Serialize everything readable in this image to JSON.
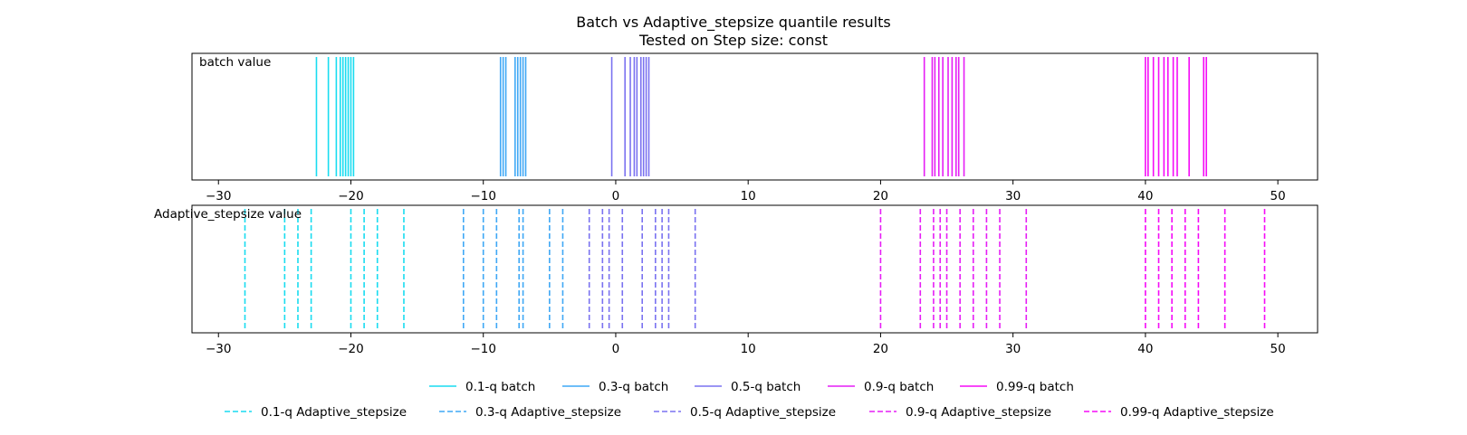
{
  "chart_data": {
    "type": "event-lines",
    "title": "Batch vs Adaptive_stepsize quantile results",
    "subtitle": "Tested on Step size: const",
    "xlim": [
      -32,
      53
    ],
    "xticks": [
      -30,
      -20,
      -10,
      0,
      10,
      20,
      30,
      40,
      50
    ],
    "grid": false,
    "legend_placement": "bottom-center",
    "panels": [
      {
        "label": "batch value",
        "line_style": "solid",
        "series": [
          {
            "name": "0.1-q batch",
            "color": "#19dcf0",
            "values": [
              -22.6,
              -21.7,
              -21.1,
              -20.8,
              -20.6,
              -20.4,
              -20.2,
              -20.0,
              -19.8
            ]
          },
          {
            "name": "0.3-q batch",
            "color": "#3fa8f5",
            "values": [
              -8.7,
              -8.5,
              -8.3,
              -7.6,
              -7.4,
              -7.2,
              -7.0,
              -6.8
            ]
          },
          {
            "name": "0.5-q batch",
            "color": "#7a72f0",
            "values": [
              -0.3,
              0.7,
              1.1,
              1.4,
              1.6,
              1.9,
              2.1,
              2.3,
              2.5
            ]
          },
          {
            "name": "0.9-q batch",
            "color": "#e61ef5",
            "values": [
              23.3,
              23.9,
              24.1,
              24.4,
              24.7,
              25.1,
              25.4,
              25.7,
              25.9,
              26.3
            ]
          },
          {
            "name": "0.99-q batch",
            "color": "#f50af7",
            "values": [
              40.0,
              40.2,
              40.6,
              41.0,
              41.4,
              41.7,
              42.1,
              42.4,
              43.3,
              44.4,
              44.6
            ]
          }
        ]
      },
      {
        "label": "Adaptive_stepsize value",
        "line_style": "dashed",
        "series": [
          {
            "name": "0.1-q Adaptive_stepsize",
            "color": "#19dcf0",
            "values": [
              -28,
              -25,
              -24,
              -23,
              -20,
              -19,
              -18,
              -16
            ]
          },
          {
            "name": "0.3-q Adaptive_stepsize",
            "color": "#3fa8f5",
            "values": [
              -11.5,
              -10,
              -9,
              -7.3,
              -7,
              -5,
              -4
            ]
          },
          {
            "name": "0.5-q Adaptive_stepsize",
            "color": "#7a72f0",
            "values": [
              -2,
              -1,
              -0.5,
              0.5,
              2,
              3,
              3.5,
              4,
              6
            ]
          },
          {
            "name": "0.9-q Adaptive_stepsize",
            "color": "#e61ef5",
            "values": [
              20,
              23,
              24,
              24.5,
              25,
              26,
              27,
              28,
              29,
              31
            ]
          },
          {
            "name": "0.99-q Adaptive_stepsize",
            "color": "#f50af7",
            "values": [
              40,
              41,
              42,
              43,
              44,
              46,
              49
            ]
          }
        ]
      }
    ]
  }
}
